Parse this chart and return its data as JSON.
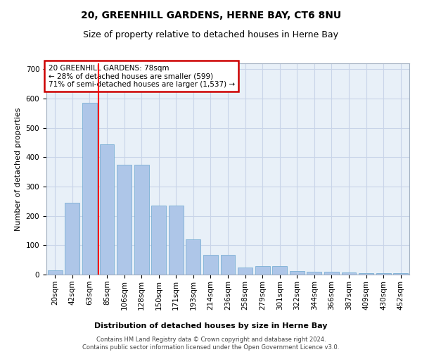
{
  "title": "20, GREENHILL GARDENS, HERNE BAY, CT6 8NU",
  "subtitle": "Size of property relative to detached houses in Herne Bay",
  "xlabel": "Distribution of detached houses by size in Herne Bay",
  "ylabel": "Number of detached properties",
  "categories": [
    "20sqm",
    "42sqm",
    "63sqm",
    "85sqm",
    "106sqm",
    "128sqm",
    "150sqm",
    "171sqm",
    "193sqm",
    "214sqm",
    "236sqm",
    "258sqm",
    "279sqm",
    "301sqm",
    "322sqm",
    "344sqm",
    "366sqm",
    "387sqm",
    "409sqm",
    "430sqm",
    "452sqm"
  ],
  "values": [
    15,
    245,
    585,
    445,
    375,
    375,
    235,
    235,
    120,
    68,
    68,
    25,
    30,
    30,
    12,
    10,
    10,
    8,
    5,
    5,
    5
  ],
  "bar_color": "#aec6e8",
  "bar_edge_color": "#7bafd4",
  "red_line_x": 2.5,
  "annotation_text": "20 GREENHILL GARDENS: 78sqm\n← 28% of detached houses are smaller (599)\n71% of semi-detached houses are larger (1,537) →",
  "annotation_box_color": "#ffffff",
  "annotation_box_edge_color": "#cc0000",
  "ylim": [
    0,
    720
  ],
  "yticks": [
    0,
    100,
    200,
    300,
    400,
    500,
    600,
    700
  ],
  "grid_color": "#c8d4e8",
  "bg_color": "#e8f0f8",
  "footer_text": "Contains HM Land Registry data © Crown copyright and database right 2024.\nContains public sector information licensed under the Open Government Licence v3.0.",
  "title_fontsize": 10,
  "subtitle_fontsize": 9,
  "axis_label_fontsize": 8,
  "tick_fontsize": 7.5,
  "annotation_fontsize": 7.5
}
